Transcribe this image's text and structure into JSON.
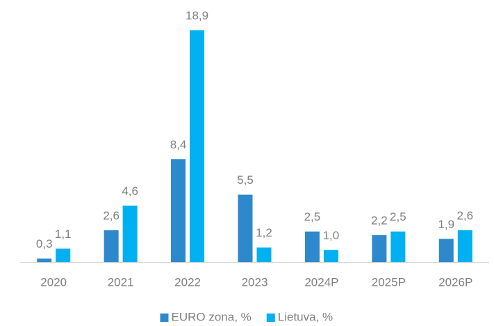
{
  "chart_data": {
    "type": "bar",
    "categories": [
      "2020",
      "2021",
      "2022",
      "2023",
      "2024P",
      "2025P",
      "2026P"
    ],
    "series": [
      {
        "name": "EURO zona, %",
        "color": "#2e88cc",
        "values": [
          0.3,
          2.6,
          8.4,
          5.5,
          2.5,
          2.2,
          1.9
        ],
        "value_labels": [
          "0,3",
          "2,6",
          "8,4",
          "5,5",
          "2,5",
          "2,2",
          "1,9"
        ]
      },
      {
        "name": "Lietuva, %",
        "color": "#00b0f0",
        "values": [
          1.1,
          4.6,
          18.9,
          1.2,
          1.0,
          2.5,
          2.6
        ],
        "value_labels": [
          "1,1",
          "4,6",
          "18,9",
          "1,2",
          "1,0",
          "2,5",
          "2,6"
        ]
      }
    ],
    "ylim": [
      0,
      20
    ],
    "legend": "bottom"
  }
}
